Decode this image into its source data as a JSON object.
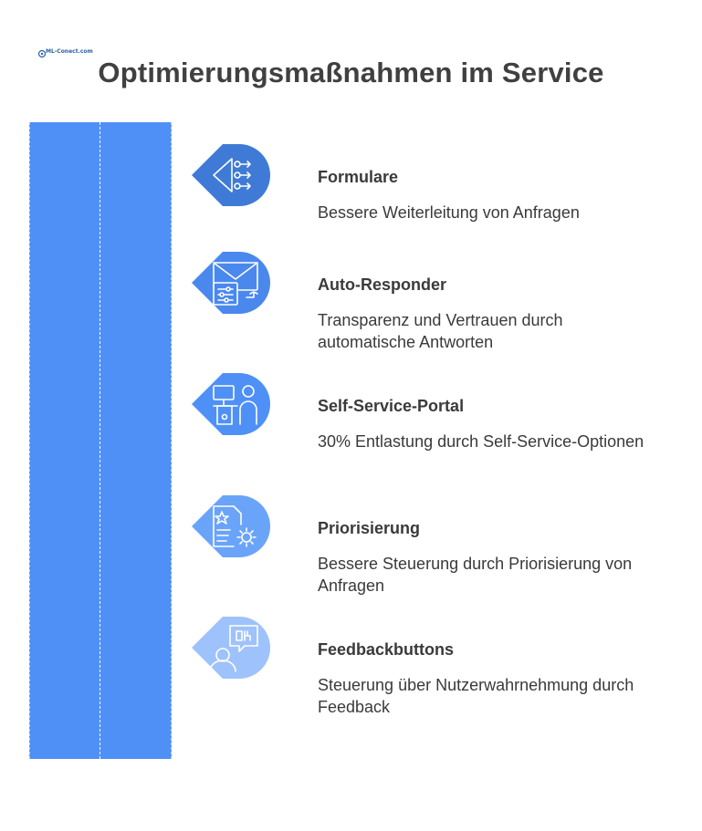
{
  "logo": {
    "text": "ML-Conect.com"
  },
  "title": "Optimierungsmaßnahmen im Service",
  "steps": [
    {
      "heading": "Formulare",
      "desc": "Bessere Weiterleitung von Anfragen",
      "icon": "routing-form-icon",
      "color": "#3f7ad6"
    },
    {
      "heading": "Auto-Responder",
      "desc": "Transparenz und Vertrauen durch automatische Antworten",
      "icon": "mail-settings-icon",
      "color": "#4a88ee"
    },
    {
      "heading": "Self-Service-Portal",
      "desc": "30% Entlastung durch Self-Service-Optionen",
      "icon": "kiosk-user-icon",
      "color": "#4f90f7"
    },
    {
      "heading": "Priorisierung",
      "desc": "Bessere Steuerung durch Priorisierung von Anfragen",
      "icon": "document-gear-icon",
      "color": "#6aa4f8"
    },
    {
      "heading": "Feedbackbuttons",
      "desc": "Steuerung über Nutzerwahrnehmung durch Feedback",
      "icon": "feedback-chat-icon",
      "color": "#9ec2fb"
    }
  ]
}
